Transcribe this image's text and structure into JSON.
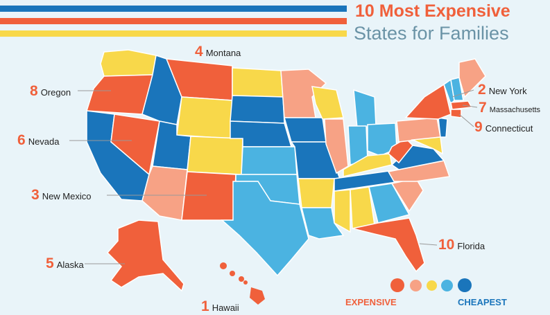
{
  "title": {
    "line1": "10 Most Expensive",
    "line2": "States for Families"
  },
  "colors": {
    "rank1": "#f0603b",
    "rank2": "#f7a285",
    "rank3": "#f8d84a",
    "rank4": "#4bb3e1",
    "rank5": "#1a75bb",
    "stripe_blue": "#1a75bb",
    "stripe_orange": "#f0603b",
    "stripe_yellow": "#f8d84a",
    "accent_text": "#f0603b"
  },
  "labels": [
    {
      "rank": "1",
      "name": "Hawaii"
    },
    {
      "rank": "2",
      "name": "New York"
    },
    {
      "rank": "3",
      "name": "New Mexico"
    },
    {
      "rank": "4",
      "name": "Montana"
    },
    {
      "rank": "5",
      "name": "Alaska"
    },
    {
      "rank": "6",
      "name": "Nevada"
    },
    {
      "rank": "7",
      "name": "Massachusetts"
    },
    {
      "rank": "8",
      "name": "Oregon"
    },
    {
      "rank": "9",
      "name": "Connecticut"
    },
    {
      "rank": "10",
      "name": "Florida"
    }
  ],
  "legend": {
    "expensive": "EXPENSIVE",
    "cheapest": "CHEAPEST"
  }
}
